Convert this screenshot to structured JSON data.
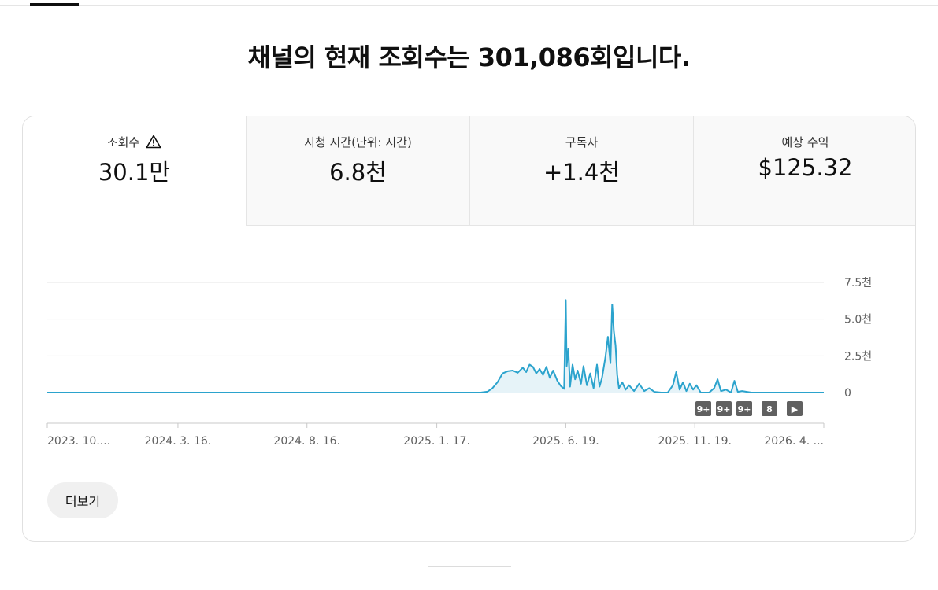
{
  "headline": "채널의 현재 조회수는 301,086회입니다.",
  "metrics": [
    {
      "label": "조회수",
      "value": "30.1만",
      "icon": "warning-icon"
    },
    {
      "label": "시청 시간(단위: 시간)",
      "value": "6.8천"
    },
    {
      "label": "구독자",
      "value": "+1.4천"
    },
    {
      "label": "예상 수익",
      "value": "$125.32"
    }
  ],
  "colors": {
    "line": "#2ba3cd",
    "fill": "#e6f3f8",
    "grid": "#e5e5e5",
    "badge": "#606060"
  },
  "chart_data": {
    "type": "area",
    "y_tick_labels": [
      "0",
      "2.5천",
      "5.0천",
      "7.5천"
    ],
    "ylim": [
      0,
      7500
    ],
    "x_tick_labels": [
      "2023. 10....",
      "2024. 3. 16.",
      "2024. 8. 16.",
      "2025. 1. 17.",
      "2025. 6. 19.",
      "2025. 11. 19.",
      "2026. 4. ..."
    ],
    "x_tick_dates": [
      "2023-10-13",
      "2024-03-16",
      "2024-08-16",
      "2025-01-17",
      "2025-06-19",
      "2025-11-19",
      "2026-04-21"
    ],
    "series": [
      {
        "points": [
          [
            "2023-10-13",
            0
          ],
          [
            "2025-03-10",
            0
          ],
          [
            "2025-03-18",
            60
          ],
          [
            "2025-03-24",
            300
          ],
          [
            "2025-03-30",
            700
          ],
          [
            "2025-04-05",
            1300
          ],
          [
            "2025-04-11",
            1450
          ],
          [
            "2025-04-17",
            1500
          ],
          [
            "2025-04-23",
            1350
          ],
          [
            "2025-04-29",
            1700
          ],
          [
            "2025-05-03",
            1400
          ],
          [
            "2025-05-07",
            1900
          ],
          [
            "2025-05-11",
            1750
          ],
          [
            "2025-05-15",
            1300
          ],
          [
            "2025-05-19",
            1600
          ],
          [
            "2025-05-23",
            1200
          ],
          [
            "2025-05-27",
            1750
          ],
          [
            "2025-05-31",
            1000
          ],
          [
            "2025-06-04",
            1500
          ],
          [
            "2025-06-09",
            800
          ],
          [
            "2025-06-13",
            450
          ],
          [
            "2025-06-17",
            250
          ],
          [
            "2025-06-19",
            6300
          ],
          [
            "2025-06-20",
            1800
          ],
          [
            "2025-06-22",
            3000
          ],
          [
            "2025-06-24",
            400
          ],
          [
            "2025-06-27",
            1900
          ],
          [
            "2025-06-30",
            900
          ],
          [
            "2025-07-03",
            1500
          ],
          [
            "2025-07-07",
            600
          ],
          [
            "2025-07-10",
            1800
          ],
          [
            "2025-07-14",
            500
          ],
          [
            "2025-07-18",
            1300
          ],
          [
            "2025-07-22",
            300
          ],
          [
            "2025-07-26",
            1900
          ],
          [
            "2025-07-29",
            400
          ],
          [
            "2025-08-01",
            1000
          ],
          [
            "2025-08-05",
            2400
          ],
          [
            "2025-08-08",
            3800
          ],
          [
            "2025-08-11",
            2000
          ],
          [
            "2025-08-13",
            6000
          ],
          [
            "2025-08-15",
            4200
          ],
          [
            "2025-08-17",
            3200
          ],
          [
            "2025-08-19",
            1200
          ],
          [
            "2025-08-21",
            300
          ],
          [
            "2025-08-25",
            700
          ],
          [
            "2025-08-29",
            200
          ],
          [
            "2025-09-02",
            500
          ],
          [
            "2025-09-08",
            100
          ],
          [
            "2025-09-14",
            600
          ],
          [
            "2025-09-20",
            100
          ],
          [
            "2025-09-26",
            300
          ],
          [
            "2025-10-02",
            50
          ],
          [
            "2025-10-10",
            0
          ],
          [
            "2025-10-18",
            0
          ],
          [
            "2025-10-24",
            500
          ],
          [
            "2025-10-28",
            1400
          ],
          [
            "2025-11-01",
            200
          ],
          [
            "2025-11-05",
            700
          ],
          [
            "2025-11-09",
            100
          ],
          [
            "2025-11-13",
            600
          ],
          [
            "2025-11-17",
            200
          ],
          [
            "2025-11-21",
            500
          ],
          [
            "2025-11-26",
            0
          ],
          [
            "2025-12-06",
            0
          ],
          [
            "2025-12-12",
            300
          ],
          [
            "2025-12-16",
            900
          ],
          [
            "2025-12-20",
            100
          ],
          [
            "2025-12-26",
            200
          ],
          [
            "2026-01-01",
            0
          ],
          [
            "2026-01-05",
            800
          ],
          [
            "2026-01-09",
            50
          ],
          [
            "2026-01-14",
            100
          ],
          [
            "2026-01-25",
            0
          ],
          [
            "2026-04-21",
            0
          ]
        ]
      }
    ],
    "markers": [
      "9+",
      "9+",
      "9+",
      "8",
      "▶"
    ]
  },
  "more_button": "더보기"
}
